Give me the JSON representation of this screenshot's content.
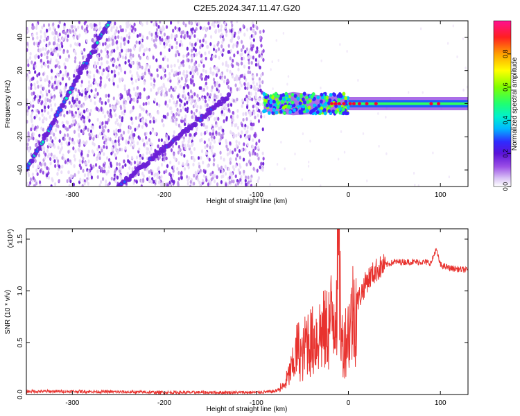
{
  "title": "C2E5.2024.347.11.47.G20",
  "colors": {
    "snr_line": "#e8322e",
    "colormap": [
      "#ffffff",
      "#e9dcf7",
      "#b88ce8",
      "#8d3ee0",
      "#6a1fd6",
      "#3a20ff",
      "#1f5cff",
      "#00c0ff",
      "#00f0c0",
      "#2fff60",
      "#9cff00",
      "#ffff00",
      "#ffb000",
      "#ff5000",
      "#ff0030",
      "#ff0088"
    ]
  },
  "chart_data": [
    {
      "type": "heatmap",
      "title": "C2E5.2024.347.11.47.G20",
      "xlabel": "Height of straight line (km)",
      "ylabel": "Frequency (Hz)",
      "xlim": [
        -350,
        130
      ],
      "ylim": [
        -50,
        50
      ],
      "xticks": [
        -300,
        -200,
        -100,
        0,
        100
      ],
      "yticks": [
        -40,
        -20,
        0,
        20,
        40
      ],
      "colorbar": {
        "label": "Normalized spectral amplitude",
        "range": [
          0.0,
          1.0
        ],
        "ticks": [
          "0.0",
          "0.2",
          "0.4",
          "0.6",
          "0.8"
        ]
      },
      "features": [
        {
          "name": "rising line 1",
          "x": [
            -350,
            -260
          ],
          "y": [
            -40,
            50
          ]
        },
        {
          "name": "rising line 2",
          "x": [
            -250,
            -130
          ],
          "y": [
            -50,
            5
          ]
        },
        {
          "name": "carrier",
          "x": [
            -100,
            130
          ],
          "y": [
            0,
            0
          ]
        }
      ]
    },
    {
      "type": "line",
      "xlabel": "Height of straight line (km)",
      "ylabel": "SNR (10 * v/v)",
      "multiplier": "(x10⁴)",
      "xlim": [
        -350,
        130
      ],
      "ylim": [
        0,
        1.6
      ],
      "xticks": [
        -300,
        -200,
        -100,
        0,
        100
      ],
      "yticks": [
        "0.0",
        "0.5",
        "1.0",
        "1.5"
      ],
      "series": [
        {
          "x": [
            -350,
            -300,
            -250,
            -200,
            -150,
            -100,
            -80,
            -70,
            -60,
            -55,
            -50,
            -45,
            -40,
            -35,
            -30,
            -25,
            -20,
            -15,
            -12,
            -10,
            -8,
            -5,
            0,
            5,
            10,
            15,
            20,
            30,
            40,
            50,
            60,
            70,
            80,
            90,
            95,
            97,
            100,
            110,
            120,
            130
          ],
          "y": [
            0.03,
            0.03,
            0.025,
            0.02,
            0.02,
            0.02,
            0.03,
            0.08,
            0.28,
            0.45,
            0.35,
            0.55,
            0.5,
            0.55,
            0.6,
            0.6,
            0.7,
            0.8,
            1.1,
            1.55,
            0.5,
            0.5,
            0.6,
            0.8,
            0.9,
            1.0,
            1.1,
            1.2,
            1.25,
            1.28,
            1.28,
            1.28,
            1.28,
            1.27,
            1.4,
            1.35,
            1.25,
            1.22,
            1.21,
            1.2
          ]
        }
      ]
    }
  ]
}
